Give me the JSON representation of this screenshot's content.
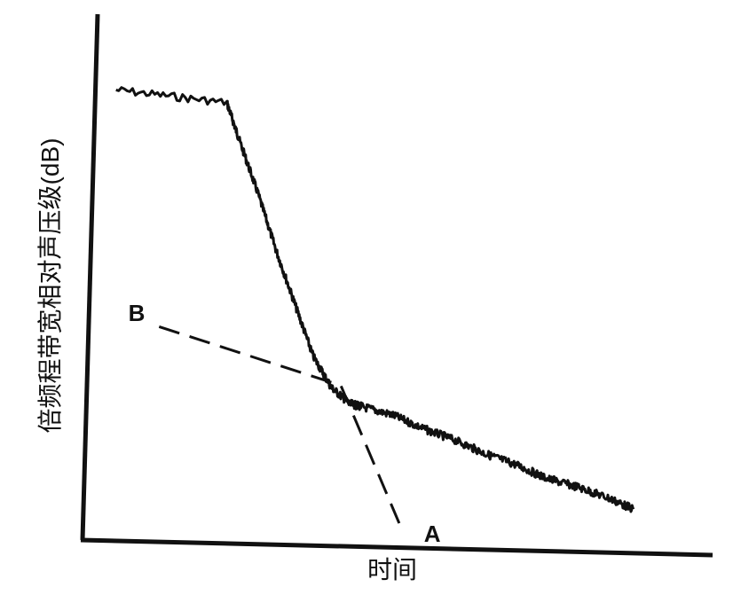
{
  "chart_data": {
    "type": "line",
    "title": "",
    "xlabel": "时间",
    "ylabel": "倍频程带宽相对声压级(dB)",
    "grid": false,
    "legend": "none",
    "x_ticks": [],
    "y_ticks": [],
    "xlim": [
      0,
      100
    ],
    "ylim": [
      0,
      100
    ],
    "series": [
      {
        "style": "solid-noisy",
        "x": [
          5,
          23,
          25,
          28,
          31,
          34,
          37,
          40,
          43,
          45,
          50,
          55,
          60,
          65,
          70,
          75,
          80,
          85,
          89
        ],
        "y": [
          86,
          84,
          77,
          67,
          56,
          46,
          36,
          30,
          27,
          26.5,
          25,
          22.5,
          20.5,
          18,
          16,
          13.5,
          12,
          10,
          8
        ]
      },
      {
        "style": "dashed",
        "x": [
          12,
          41.5,
          51.5
        ],
        "y": [
          41,
          30.5,
          3
        ]
      }
    ],
    "annotations": [
      {
        "text": "B",
        "x": 7,
        "y": 42
      },
      {
        "text": "A",
        "x": 55,
        "y": 1
      }
    ]
  }
}
